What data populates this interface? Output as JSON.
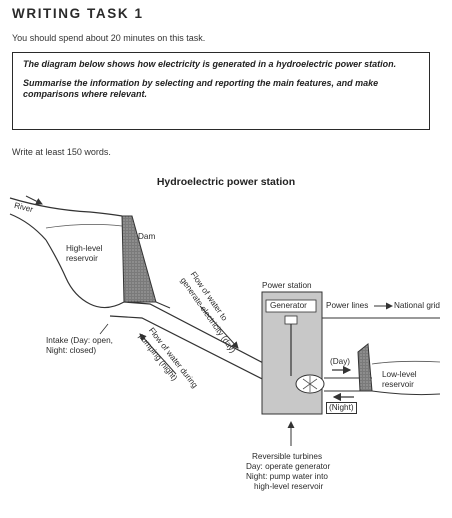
{
  "header": {
    "task_title": "WRITING TASK 1",
    "instruction": "You should spend about 20 minutes on this task.",
    "prompt_line1": "The diagram below shows how electricity is generated in a hydroelectric power station.",
    "prompt_line2": "Summarise the information by selecting and reporting the main features, and make comparisons where relevant.",
    "word_count": "Write at least 150 words."
  },
  "diagram": {
    "title": "Hydroelectric power station",
    "labels": {
      "river": "River",
      "dam": "Dam",
      "high_reservoir_1": "High-level",
      "high_reservoir_2": "reservoir",
      "intake_1": "Intake (Day: open,",
      "intake_2": "Night: closed)",
      "flow_day_1": "Flow of water to",
      "flow_day_2": "generate electricity (day)",
      "flow_night_1": "Flow of water during",
      "flow_night_2": "pumping (night)",
      "power_station": "Power station",
      "generator": "Generator",
      "power_lines": "Power lines",
      "national_grid": "National grid",
      "day": "(Day)",
      "night": "(Night)",
      "low_reservoir_1": "Low-level",
      "low_reservoir_2": "reservoir",
      "turbines_1": "Reversible turbines",
      "turbines_2": "Day: operate generator",
      "turbines_3": "Night: pump water into",
      "turbines_4": "high-level reservoir"
    }
  }
}
